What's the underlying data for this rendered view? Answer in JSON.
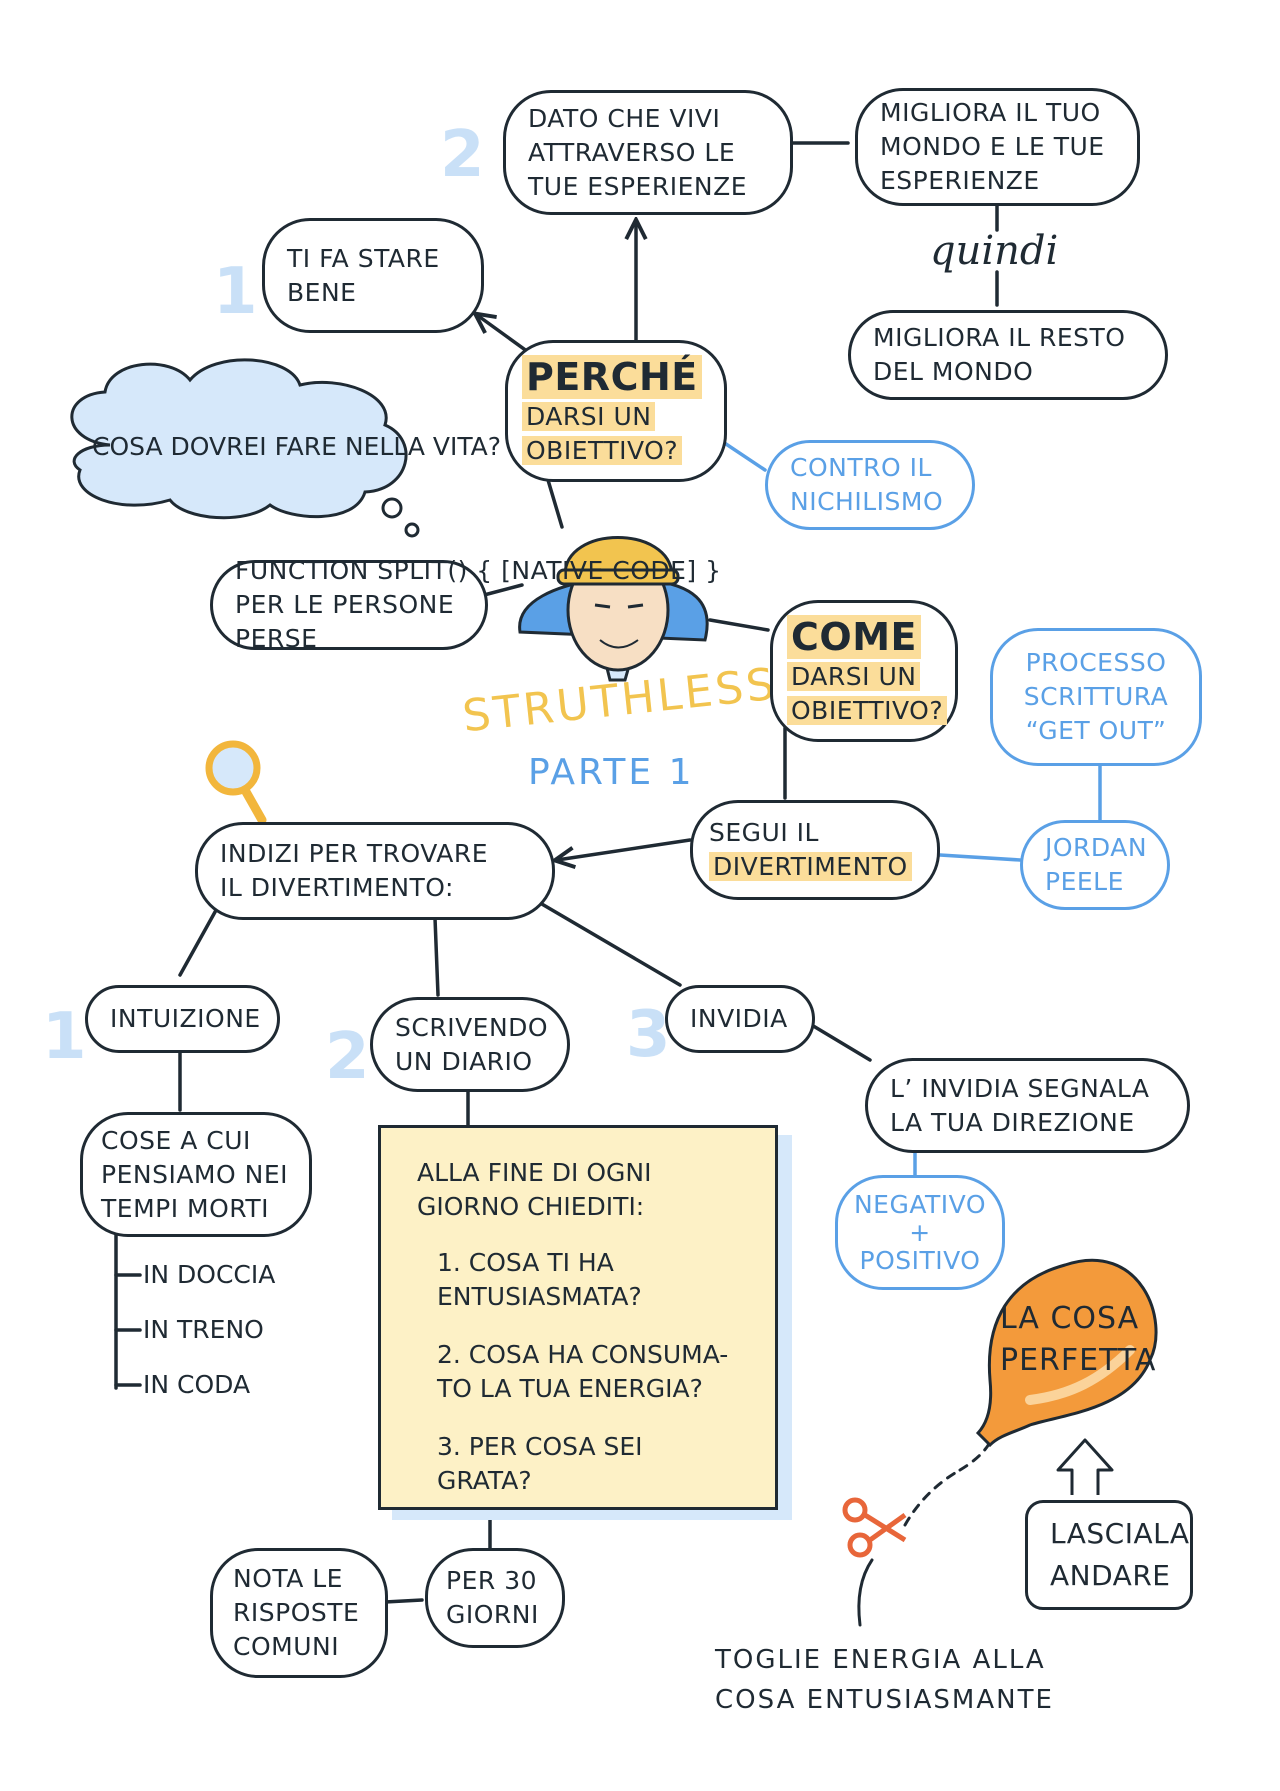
{
  "title": {
    "name": "STRUTHLESS",
    "part": "PARTE 1"
  },
  "thought": "COSA DOVREI FARE NELLA VITA?",
  "lost_people": "PER LE PERSONE PERSE",
  "why": {
    "heading": "PERCHÉ",
    "line1": "DARSI UN",
    "line2": "OBIETTIVO?",
    "reason1": {
      "num": "1",
      "line1": "TI FA STARE",
      "line2": "BENE"
    },
    "reason2": {
      "num": "2",
      "line1": "DATO CHE VIVI",
      "line2": "ATTRAVERSO LE",
      "line3": "TUE ESPERIENZE"
    },
    "improve": {
      "line1": "MIGLIORA IL TUO",
      "line2": "MONDO E LE TUE",
      "line3": "ESPERIENZE"
    },
    "therefore": "quindi",
    "improve_rest": {
      "line1": "MIGLIORA IL RESTO",
      "line2": "DEL MONDO"
    },
    "nihilism": {
      "line1": "CONTRO IL",
      "line2": "NICHILISMO"
    }
  },
  "how": {
    "heading": "COME",
    "line1": "DARSI UN",
    "line2": "OBIETTIVO?",
    "follow": {
      "line1": "SEGUI IL",
      "line2": "DIVERTIMENTO"
    },
    "jordan": {
      "line1": "JORDAN",
      "line2": "PEELE"
    },
    "process": {
      "line1": "PROCESSO",
      "line2": "SCRITTURA",
      "line3": "“GET OUT”"
    }
  },
  "clues": {
    "line1": "INDIZI PER TROVARE",
    "line2": "IL DIVERTIMENTO:"
  },
  "clue1": {
    "num": "1",
    "label": "INTUIZIONE",
    "detail": {
      "line1": "COSE A CUI",
      "line2": "PENSIAMO NEI",
      "line3": "TEMPI MORTI"
    },
    "examples": [
      "IN DOCCIA",
      "IN TRENO",
      "IN CODA"
    ]
  },
  "clue2": {
    "num": "2",
    "line1": "SCRIVENDO",
    "line2": "UN DIARIO",
    "note": {
      "intro1": "ALLA FINE DI OGNI",
      "intro2": "GIORNO CHIEDITI:",
      "q1a": "1. COSA TI HA",
      "q1b": "ENTUSIASMATA?",
      "q2a": "2. COSA HA CONSUMA-",
      "q2b": "TO LA TUA ENERGIA?",
      "q3a": "3. PER COSA SEI",
      "q3b": "GRATA?"
    },
    "days": {
      "line1": "PER 30",
      "line2": "GIORNI"
    },
    "common": {
      "line1": "NOTA LE",
      "line2": "RISPOSTE",
      "line3": "COMUNI"
    }
  },
  "clue3": {
    "num": "3",
    "label": "INVIDIA",
    "signal": {
      "line1": "L’ INVIDIA SEGNALA",
      "line2": "LA TUA DIREZIONE"
    },
    "polarity": {
      "line1": "NEGATIVO",
      "line2": "+",
      "line3": "POSITIVO"
    }
  },
  "balloon": {
    "line1": "LA COSA",
    "line2": "PERFETTA"
  },
  "let_go": {
    "line1": "LASCIALA",
    "line2": "ANDARE"
  },
  "drain": {
    "line1": "TOGLIE ENERGIA ALLA",
    "line2": "COSA ENTUSIASMANTE"
  },
  "colors": {
    "ink": "#1f2a33",
    "blue": "#5aa0e6",
    "highlight": "#fbdd9a",
    "note": "#fdf1c6",
    "orange": "#f39a3b",
    "title_yellow": "#f2c44f"
  }
}
